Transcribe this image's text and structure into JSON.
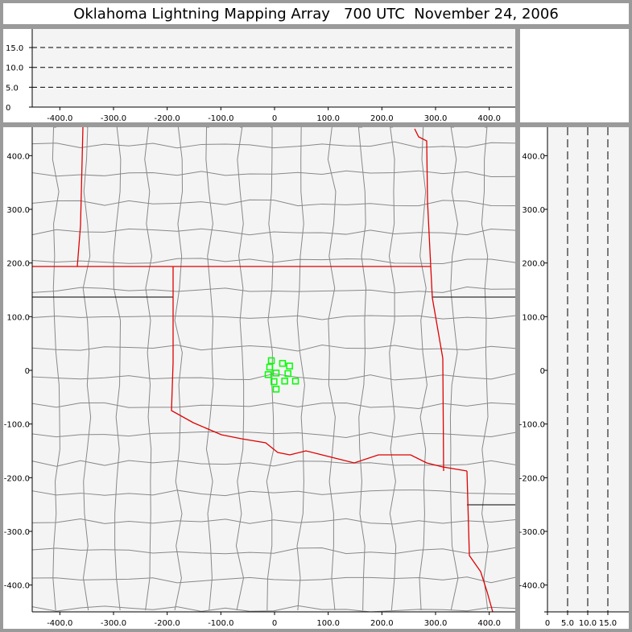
{
  "title": "Oklahoma Lightning Mapping Array   700 UTC  November 24, 2006",
  "colors": {
    "state_border": "#e00000",
    "county": "#888888",
    "source_marker": "#00ff00",
    "plot_bg": "#f4f4f4",
    "frame": "#9a9a9a"
  },
  "chart_data": [
    {
      "type": "scatter",
      "panel": "altitude-vs-east-west",
      "xlim": [
        -450,
        450
      ],
      "ylim": [
        0,
        20
      ],
      "x_ticks": [
        "-400.0",
        "-300.0",
        "-200.0",
        "-100.0",
        "0",
        "100.0",
        "200.0",
        "300.0",
        "400.0"
      ],
      "y_ticks": [
        "0",
        "5.0",
        "10.0",
        "15.0"
      ],
      "dashed_gridlines_y": [
        5,
        10,
        15
      ],
      "points": []
    },
    {
      "type": "scatter",
      "panel": "plan-view-map",
      "xlim": [
        -450,
        450
      ],
      "ylim": [
        -450,
        450
      ],
      "x_ticks": [
        "-400.0",
        "-300.0",
        "-200.0",
        "-100.0",
        "0",
        "100.0",
        "200.0",
        "300.0",
        "400.0"
      ],
      "y_ticks": [
        "400.0",
        "300.0",
        "200.0",
        "100.0",
        "0",
        "-100.0",
        "-200.0",
        "-300.0",
        "-400.0"
      ],
      "marker": "hollow-square",
      "points": [
        [
          -6,
          18
        ],
        [
          -9,
          6
        ],
        [
          15,
          13
        ],
        [
          28,
          8
        ],
        [
          -12,
          -8
        ],
        [
          3,
          -5
        ],
        [
          25,
          -6
        ],
        [
          -1,
          -21
        ],
        [
          19,
          -20
        ],
        [
          39,
          -20
        ],
        [
          3,
          -35
        ]
      ]
    },
    {
      "type": "scatter",
      "panel": "north-south-vs-altitude",
      "xlim": [
        0,
        20
      ],
      "ylim": [
        -450,
        450
      ],
      "x_ticks": [
        "0",
        "5.0",
        "10.0",
        "15.0"
      ],
      "y_ticks": [
        "400.0",
        "300.0",
        "200.0",
        "100.0",
        "0",
        "-100.0",
        "-200.0",
        "-300.0",
        "-400.0"
      ],
      "dashed_gridlines_x": [
        5,
        10,
        15
      ],
      "points": []
    }
  ]
}
